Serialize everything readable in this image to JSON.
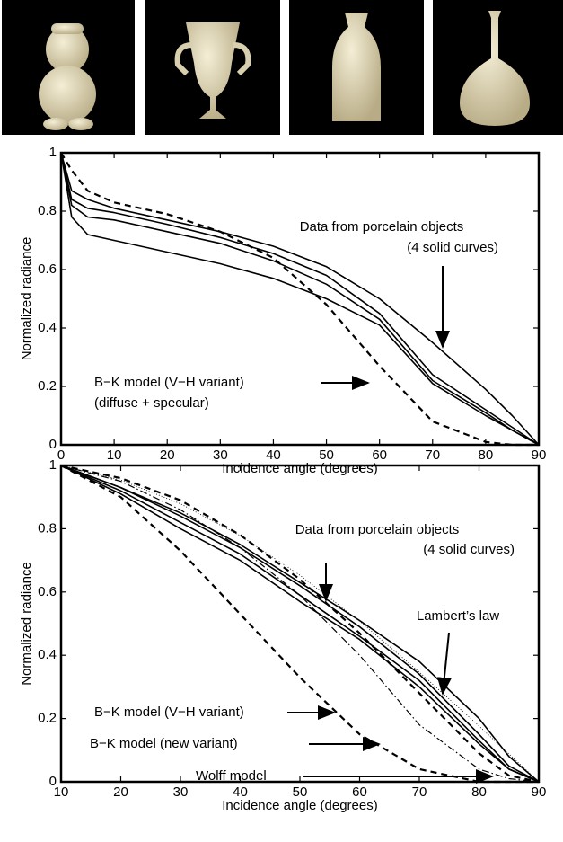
{
  "chart_data": [
    {
      "type": "line",
      "x_label": "Incidence angle (degrees)",
      "y_label": "Normalized radiance",
      "x": [
        0,
        2,
        5,
        10,
        20,
        30,
        40,
        50,
        60,
        70,
        80,
        85,
        90
      ],
      "series": [
        {
          "color": "#000000",
          "style": "solid",
          "values": [
            1,
            0.87,
            0.84,
            0.81,
            0.77,
            0.73,
            0.68,
            0.61,
            0.5,
            0.35,
            0.19,
            0.1,
            0
          ]
        },
        {
          "color": "#000000",
          "style": "solid",
          "values": [
            1,
            0.84,
            0.81,
            0.795,
            0.755,
            0.71,
            0.655,
            0.58,
            0.45,
            0.24,
            0.12,
            0.06,
            0
          ]
        },
        {
          "color": "#000000",
          "style": "solid",
          "values": [
            1,
            0.82,
            0.78,
            0.77,
            0.73,
            0.69,
            0.63,
            0.55,
            0.43,
            0.22,
            0.11,
            0.05,
            0
          ]
        },
        {
          "color": "#000000",
          "style": "solid",
          "values": [
            1,
            0.78,
            0.72,
            0.7,
            0.66,
            0.62,
            0.57,
            0.5,
            0.41,
            0.21,
            0.1,
            0.05,
            0
          ]
        },
        {
          "color": "#000000",
          "style": "dashed",
          "values": [
            1,
            0.94,
            0.87,
            0.83,
            0.79,
            0.73,
            0.64,
            0.48,
            0.27,
            0.08,
            0.01,
            0,
            0
          ]
        }
      ],
      "annotations": [
        "Data from porcelain objects",
        "(4 solid curves)",
        "B−K model (V−H variant)",
        "(diffuse + specular)"
      ],
      "xlim": [
        0,
        90
      ],
      "xticks": [
        0,
        10,
        20,
        30,
        40,
        50,
        60,
        70,
        80,
        90
      ],
      "ylim": [
        0,
        1
      ],
      "yticks": [
        0,
        0.2,
        0.4,
        0.6,
        0.8,
        1
      ]
    },
    {
      "type": "line",
      "x_label": "Incidence angle (degrees)",
      "y_label": "Normalized radiance",
      "x": [
        10,
        20,
        30,
        40,
        50,
        60,
        70,
        80,
        85,
        90
      ],
      "series": [
        {
          "color": "#000000",
          "style": "solid",
          "values": [
            1,
            0.93,
            0.85,
            0.75,
            0.63,
            0.51,
            0.38,
            0.2,
            0.08,
            0
          ]
        },
        {
          "color": "#000000",
          "style": "solid",
          "values": [
            1,
            0.93,
            0.84,
            0.74,
            0.62,
            0.49,
            0.34,
            0.15,
            0.05,
            0
          ]
        },
        {
          "color": "#000000",
          "style": "solid",
          "values": [
            1,
            0.92,
            0.82,
            0.72,
            0.59,
            0.46,
            0.32,
            0.13,
            0.04,
            0
          ]
        },
        {
          "color": "#000000",
          "style": "solid",
          "values": [
            1,
            0.91,
            0.8,
            0.7,
            0.57,
            0.45,
            0.3,
            0.12,
            0.04,
            0
          ]
        },
        {
          "color": "#000000",
          "style": "dotted",
          "values": [
            1,
            0.954,
            0.879,
            0.778,
            0.653,
            0.508,
            0.347,
            0.176,
            0.088,
            0
          ]
        },
        {
          "color": "#000000",
          "style": "dashed",
          "values": [
            1,
            0.9,
            0.73,
            0.53,
            0.33,
            0.15,
            0.04,
            0,
            0,
            0
          ]
        },
        {
          "color": "#000000",
          "style": "dashdot",
          "values": [
            1,
            0.95,
            0.86,
            0.74,
            0.59,
            0.4,
            0.18,
            0.04,
            0.01,
            0
          ]
        },
        {
          "color": "#000000",
          "style": "dashed",
          "values": [
            1,
            0.96,
            0.89,
            0.78,
            0.64,
            0.47,
            0.28,
            0.09,
            0.02,
            0
          ]
        }
      ],
      "annotations": [
        "Data from porcelain objects",
        "(4 solid curves)",
        "Lambert’s law",
        "B−K model (V−H variant)",
        "B−K model (new variant)",
        "Wolff model"
      ],
      "xlim": [
        10,
        90
      ],
      "xticks": [
        10,
        20,
        30,
        40,
        50,
        60,
        70,
        80,
        90
      ],
      "ylim": [
        0,
        1
      ],
      "yticks": [
        0,
        0.2,
        0.4,
        0.6,
        0.8,
        1
      ]
    }
  ]
}
